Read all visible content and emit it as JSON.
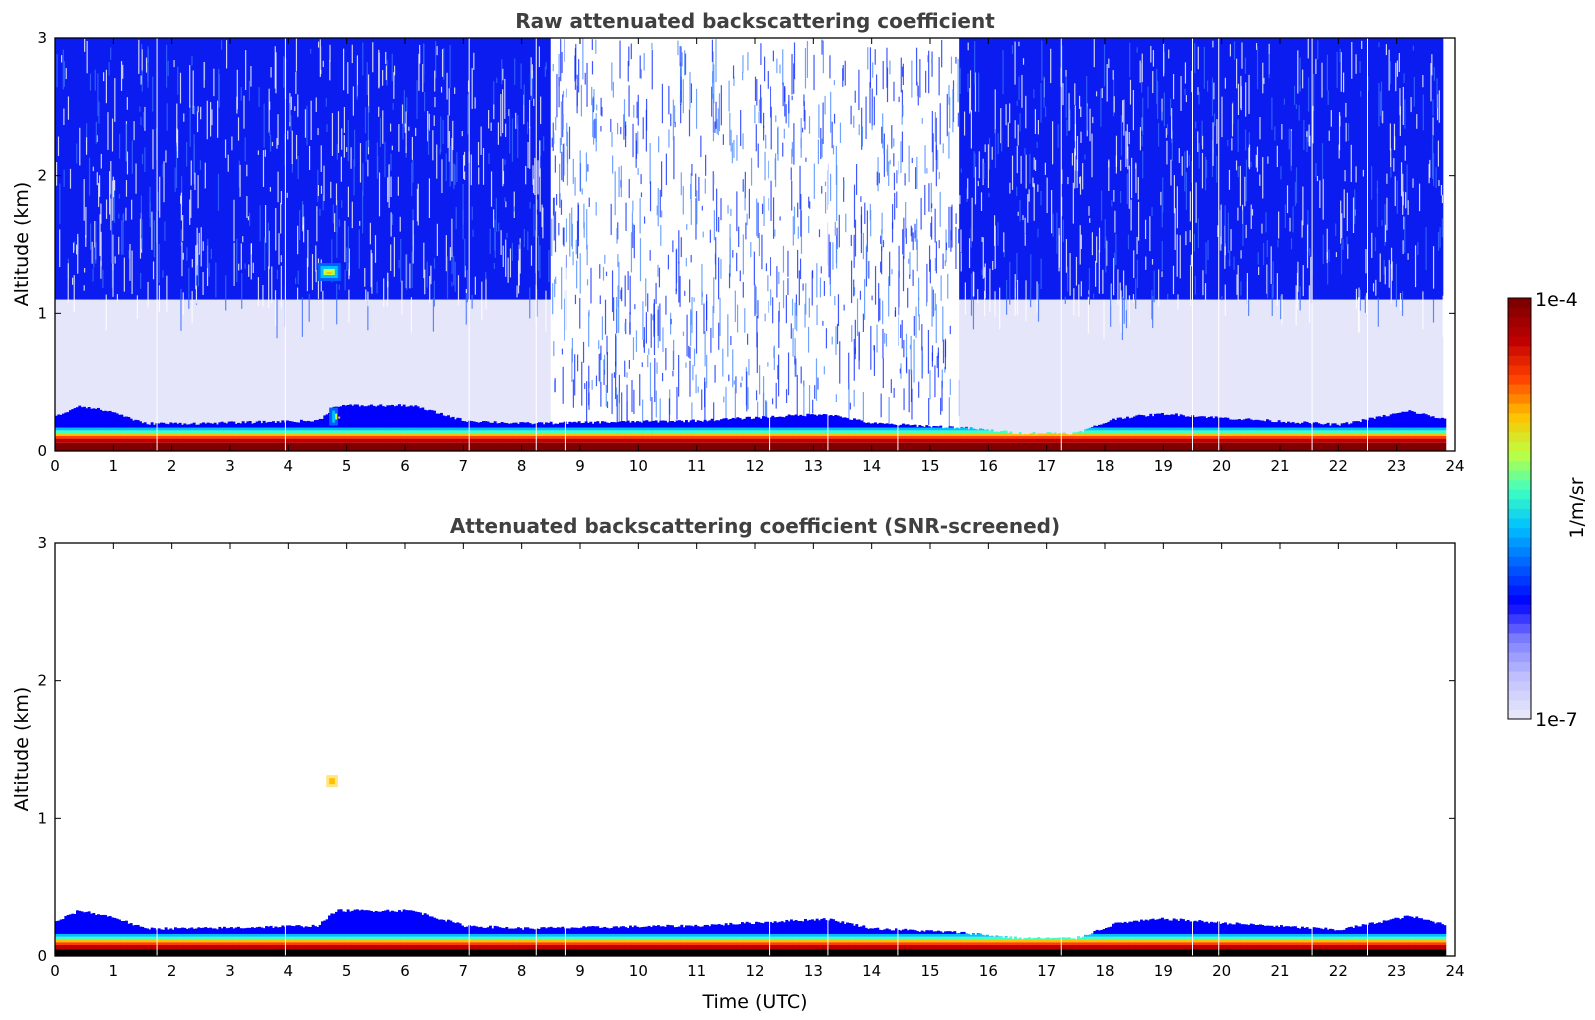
{
  "chart_data": [
    {
      "type": "heatmap",
      "title": "Raw attenuated backscattering coefficient",
      "xlabel": "",
      "ylabel": "Altitude (km)",
      "xlim": [
        0,
        24
      ],
      "ylim": [
        0,
        3
      ],
      "x_ticks": [
        "0",
        "1",
        "2",
        "3",
        "4",
        "5",
        "6",
        "7",
        "8",
        "9",
        "10",
        "11",
        "12",
        "13",
        "14",
        "15",
        "16",
        "17",
        "18",
        "19",
        "20",
        "21",
        "22",
        "23",
        "24"
      ],
      "y_ticks": [
        "0",
        "1",
        "2",
        "3"
      ],
      "noise_regions": [
        {
          "t_start": 0.0,
          "t_end": 8.5,
          "noise_top_km": 3.0,
          "clear_below_km": 1.1,
          "level": "high"
        },
        {
          "t_start": 8.5,
          "t_end": 15.5,
          "noise_top_km": 3.0,
          "clear_below_km": 0.35,
          "level": "low"
        },
        {
          "t_start": 15.5,
          "t_end": 23.8,
          "noise_top_km": 3.0,
          "clear_below_km": 1.1,
          "level": "high"
        }
      ],
      "boundary_layer_top_km": [
        {
          "t": 0.0,
          "top": 0.25
        },
        {
          "t": 0.4,
          "top": 0.33
        },
        {
          "t": 1.0,
          "top": 0.28
        },
        {
          "t": 1.5,
          "top": 0.2
        },
        {
          "t": 2.5,
          "top": 0.2
        },
        {
          "t": 4.5,
          "top": 0.22
        },
        {
          "t": 4.8,
          "top": 0.33
        },
        {
          "t": 5.8,
          "top": 0.33
        },
        {
          "t": 6.1,
          "top": 0.33
        },
        {
          "t": 7.0,
          "top": 0.22
        },
        {
          "t": 8.0,
          "top": 0.2
        },
        {
          "t": 11.0,
          "top": 0.22
        },
        {
          "t": 13.2,
          "top": 0.27
        },
        {
          "t": 14.0,
          "top": 0.2
        },
        {
          "t": 15.5,
          "top": 0.17
        },
        {
          "t": 16.5,
          "top": 0.13
        },
        {
          "t": 17.5,
          "top": 0.13
        },
        {
          "t": 18.2,
          "top": 0.24
        },
        {
          "t": 19.0,
          "top": 0.27
        },
        {
          "t": 20.0,
          "top": 0.24
        },
        {
          "t": 22.0,
          "top": 0.19
        },
        {
          "t": 23.2,
          "top": 0.29
        },
        {
          "t": 23.8,
          "top": 0.23
        }
      ],
      "features": [
        {
          "name": "elevated cloud",
          "t_start": 4.5,
          "t_end": 4.9,
          "alt_km": 1.3,
          "intensity": "high"
        },
        {
          "name": "low cloud",
          "t_start": 4.7,
          "t_end": 4.85,
          "alt_km": 0.25,
          "intensity": "very high"
        }
      ],
      "data_gaps_utc": [
        1.75,
        3.95,
        7.1,
        8.25,
        8.75,
        12.25,
        13.25,
        14.45,
        17.25,
        19.5,
        19.95,
        21.55,
        22.5
      ]
    },
    {
      "type": "heatmap",
      "title": "Attenuated backscattering coefficient (SNR-screened)",
      "xlabel": "Time (UTC)",
      "ylabel": "Altitude (km)",
      "xlim": [
        0,
        24
      ],
      "ylim": [
        0,
        3
      ],
      "x_ticks": [
        "0",
        "1",
        "2",
        "3",
        "4",
        "5",
        "6",
        "7",
        "8",
        "9",
        "10",
        "11",
        "12",
        "13",
        "14",
        "15",
        "16",
        "17",
        "18",
        "19",
        "20",
        "21",
        "22",
        "23",
        "24"
      ],
      "y_ticks": [
        "0",
        "1",
        "2",
        "3"
      ],
      "features": [
        {
          "name": "elevated cloud",
          "t_start": 4.65,
          "t_end": 4.85,
          "alt_km": 1.27,
          "intensity": "medium-high"
        }
      ],
      "screened_note": "noise above boundary layer removed"
    }
  ],
  "colorbar": {
    "label": "1/m/sr",
    "max_label": "1e-4",
    "min_label": "1e-7",
    "scale": "log",
    "colors": [
      "#e6e6fa",
      "#c0c0ff",
      "#8080ff",
      "#0000ff",
      "#0060ff",
      "#00c0ff",
      "#40ffc0",
      "#c0ff40",
      "#ffc000",
      "#ff4000",
      "#c00000",
      "#800000"
    ]
  }
}
